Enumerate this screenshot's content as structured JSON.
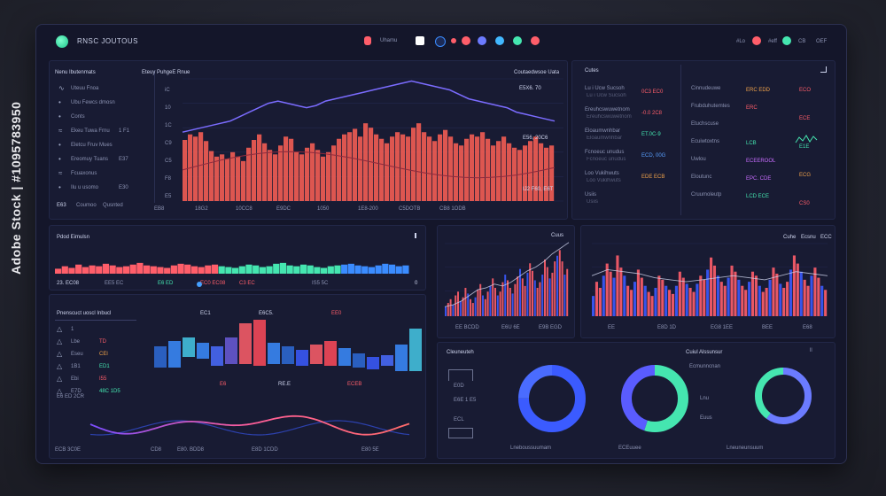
{
  "header": {
    "title": "RNSC JOUTOUS",
    "tab_label": "Uhamu",
    "pills": [
      {
        "color": "#ff5e6a"
      },
      {
        "color": "#ffffff"
      },
      {
        "color": "#3b8cff"
      },
      {
        "color": "#ff5e6a"
      },
      {
        "color": "#6c7bff"
      },
      {
        "color": "#42b8ff"
      },
      {
        "color": "#45e6b0"
      },
      {
        "color": "#ff5e6a"
      }
    ],
    "right_items": [
      "#Lo",
      "#eff",
      "CB",
      "OEF"
    ]
  },
  "left_list": {
    "title": "Nenu Ibutenmats",
    "rows": [
      {
        "label": "Uteuu Fnoa",
        "value": "",
        "icon": "pulse-icon"
      },
      {
        "label": "Ubu Fewcs dmosn",
        "value": "",
        "icon": "dot-icon"
      },
      {
        "label": "Conts",
        "value": "",
        "icon": "dot-icon"
      },
      {
        "label": "Ekeu Tuwa Frnu",
        "value": "1 F1",
        "icon": "wave-icon"
      },
      {
        "label": "Eletcu Fruv Mues",
        "value": "",
        "icon": "dot-icon"
      },
      {
        "label": "Ereomuy Tuans",
        "value": "E37",
        "icon": "dot-icon"
      },
      {
        "label": "Fcuaxonus",
        "value": "",
        "icon": "wave-icon"
      },
      {
        "label": "Ilu u usomo",
        "value": "E30",
        "icon": "dot-icon"
      }
    ],
    "footer": [
      "E63",
      "Coumoo",
      "Qusnted"
    ]
  },
  "main_chart": {
    "title": "Eteuy PuhgeE Rnue",
    "right_title": "Coutaedwsoe Uata",
    "annotations": [
      "E5X6. 70",
      "E56, 20C6",
      "IJ2 F60, E6T"
    ],
    "x_labels": [
      "EB8",
      "18G2",
      "10CC8",
      "E9DC",
      "1050",
      "1E8-200",
      "C5DOTB",
      "CB8 1ODB"
    ],
    "y_labels": [
      "iC",
      "10",
      "1C",
      "C9",
      "C5",
      "F8",
      "E5"
    ]
  },
  "chart_data": [
    {
      "type": "bar",
      "title": "Eteuy PuhgeE Rnue",
      "values": [
        55,
        60,
        58,
        62,
        54,
        45,
        40,
        42,
        38,
        44,
        40,
        36,
        48,
        55,
        60,
        52,
        46,
        42,
        50,
        58,
        56,
        44,
        42,
        48,
        52,
        46,
        40,
        44,
        50,
        56,
        60,
        62,
        65,
        58,
        70,
        66,
        60,
        56,
        52,
        58,
        62,
        60,
        58,
        66,
        70,
        62,
        58,
        54,
        60,
        64,
        58,
        52,
        50,
        56,
        60,
        58,
        62,
        56,
        50,
        54,
        58,
        52,
        48,
        46,
        50,
        54,
        58,
        52,
        48,
        50
      ],
      "line": [
        62,
        64,
        66,
        68,
        70,
        72,
        76,
        80,
        84,
        88,
        90,
        88,
        86,
        84,
        86,
        90,
        92,
        94,
        96,
        98,
        100,
        102,
        104,
        106,
        108,
        106,
        104,
        102,
        100,
        96,
        92,
        90,
        88,
        86,
        84,
        80,
        78,
        76,
        74,
        72
      ],
      "ylim": [
        0,
        110
      ]
    },
    {
      "type": "bar",
      "values": [
        12,
        18,
        14,
        22,
        16,
        20,
        18,
        24,
        20,
        16,
        18,
        22,
        26,
        20,
        18,
        16,
        14,
        20,
        24,
        22,
        18,
        16,
        20,
        22,
        18,
        16,
        14,
        18,
        22,
        20,
        16,
        18,
        24,
        26,
        20,
        18,
        22,
        20,
        16,
        14,
        18,
        20,
        22,
        24,
        20,
        18,
        16,
        20,
        24,
        22,
        18,
        20
      ],
      "ylim": [
        0,
        30
      ]
    },
    {
      "type": "bar",
      "values": [
        10,
        14,
        18,
        12,
        22,
        26,
        16,
        20,
        30,
        24,
        18,
        14,
        20,
        28,
        34,
        22,
        18,
        26,
        32,
        40,
        30,
        22,
        26,
        36,
        44,
        38,
        30,
        24,
        34,
        42,
        50,
        40,
        32,
        46,
        56,
        48,
        38,
        30,
        36,
        44,
        60,
        52,
        40,
        46,
        58,
        64,
        70,
        58,
        44,
        50
      ],
      "line": [
        10,
        12,
        16,
        22,
        28,
        30,
        34,
        32,
        36,
        42,
        48,
        52,
        58,
        66,
        72,
        78
      ],
      "ylim": [
        0,
        75
      ]
    },
    {
      "type": "bar",
      "values": [
        20,
        34,
        28,
        40,
        52,
        44,
        38,
        60,
        48,
        40,
        30,
        26,
        34,
        46,
        38,
        30,
        24,
        20,
        28,
        40,
        36,
        30,
        26,
        22,
        30,
        44,
        38,
        32,
        28,
        24,
        32,
        40,
        36,
        46,
        58,
        50,
        40,
        34,
        30,
        38,
        50,
        44,
        36,
        30,
        26,
        34,
        44,
        40,
        30,
        24,
        28,
        36,
        48,
        42,
        32,
        28,
        34,
        46,
        60,
        52,
        44,
        36,
        30,
        40,
        48,
        38,
        30,
        26
      ],
      "line": [
        40,
        46,
        44,
        42,
        38,
        36,
        34,
        36,
        38,
        40,
        38,
        36,
        40,
        44,
        42,
        40
      ],
      "ylim": [
        0,
        70
      ]
    },
    {
      "type": "bar",
      "values": [
        14,
        22,
        30,
        26,
        18,
        34,
        40,
        36,
        28,
        22,
        30,
        38,
        44,
        40,
        34,
        26,
        20,
        28,
        36,
        42,
        46,
        38,
        30,
        24,
        30,
        40,
        48,
        56,
        52,
        44,
        36,
        30,
        26,
        34,
        42,
        50,
        46,
        38,
        30,
        24,
        20,
        28,
        36,
        44,
        40,
        34,
        28,
        22
      ],
      "ylim": [
        0,
        60
      ]
    },
    {
      "type": "pie",
      "title": "Eelcl Artsbeaaur",
      "slices": [
        {
          "label": "A",
          "value": 0.75,
          "color": "#3b5bff"
        },
        {
          "label": "B",
          "value": 0.25,
          "color": "#4a6cff"
        }
      ]
    },
    {
      "type": "pie",
      "slices": [
        {
          "label": "A",
          "value": 0.55,
          "color": "#45e6b0"
        },
        {
          "label": "B",
          "value": 0.45,
          "color": "#5a5cff"
        }
      ]
    },
    {
      "type": "pie",
      "slices": [
        {
          "label": "A",
          "value": 0.6,
          "color": "#6b7bff"
        },
        {
          "label": "B",
          "value": 0.4,
          "color": "#45e6b0"
        }
      ]
    }
  ],
  "right_table": {
    "title": "Cutes",
    "col1": [
      {
        "label": "Lu i Ucw Sucsoh",
        "value": "0C3 EC0",
        "color": "#ff5e6a"
      },
      {
        "label": "Ereuhcswuwetnom",
        "value": "-0.0 2C8",
        "color": "#ff5e6a"
      },
      {
        "label": "Eloaumwnhbar",
        "value": "ET.0C-9",
        "color": "#45e6b0"
      },
      {
        "label": "Fcnoeuc unudus",
        "value": "ECD, 00G",
        "color": "#58a0ff"
      },
      {
        "label": "Loo Vukihwuts",
        "value": "EDE ECB",
        "color": "#f0a24a"
      },
      {
        "label": "Usiis",
        "value": "",
        "color": "#8c93b3"
      }
    ],
    "col2": [
      {
        "label": "Cinnudeuwe",
        "value": "ERC EDD",
        "color": "#f0a24a"
      },
      {
        "label": "Frubduhutemtes",
        "value": "ERC",
        "color": "#ff5e6a"
      },
      {
        "label": "Etuchscuse",
        "value": "",
        "color": "#8c93b3"
      },
      {
        "label": "Ecuiwtoxtns",
        "value": "LCB",
        "color": "#45e6b0"
      },
      {
        "label": "Uwlou",
        "value": "ECEEROOL",
        "color": "#c86dff"
      },
      {
        "label": "Eloutunc",
        "value": "EPC. CDE",
        "color": "#c86dff"
      },
      {
        "label": "Cruumoleutp",
        "value": "LCD ECE",
        "color": "#45e6b0"
      }
    ],
    "col3": [
      "ECO",
      "ECE",
      "E1E",
      "ECG",
      "CS0"
    ]
  },
  "mid_left": {
    "title": "Pdod Eimulsn",
    "stats": [
      {
        "label": "23. EC08",
        "color": "#cfd5ee"
      },
      {
        "label": "EE5 EC",
        "color": "#8c93b3"
      },
      {
        "label": "E6 ED",
        "color": "#45e6b0"
      },
      {
        "label": "EC0 EC08",
        "color": "#ff5e6a"
      },
      {
        "label": "C3 EC",
        "color": "#ff5e6a"
      },
      {
        "label": "IS5 5C",
        "color": "#8c93b3"
      },
      {
        "label": "0",
        "color": "#cfd5ee"
      }
    ]
  },
  "lower_left": {
    "title": "Pnenscuct uoscl Inbucl",
    "rows": [
      {
        "label": "1",
        "value": "",
        "color": "#8c93b3"
      },
      {
        "label": "Lbe",
        "value": "TD",
        "color": "#ff5e6a"
      },
      {
        "label": "Eseu",
        "value": "CEl",
        "color": "#f0a24a"
      },
      {
        "label": "1B1",
        "value": "ED1",
        "color": "#45e6b0"
      },
      {
        "label": "Ebi",
        "value": "I55",
        "color": "#ff5e6a"
      },
      {
        "label": "E7D",
        "value": "48C 1D5",
        "color": "#45e6b0"
      }
    ],
    "heat_labels": [
      "EC1",
      "E6C5.",
      "EE0",
      "E6",
      "RE.E",
      "ECEB"
    ],
    "footer": [
      "ECB 3C0E",
      "CD8",
      "E80. BDD8",
      "E8D 1CDD",
      "E80 5E"
    ],
    "wave_label": "E6 ED 2CR"
  },
  "mid_charts": {
    "titles": [
      "Cuus",
      "Cuhe",
      "Ecsnu",
      "ECC"
    ],
    "x_labels_1": [
      "EE BCDD",
      "E6U 6E",
      "E9B EGD"
    ],
    "x_labels_2": [
      "EE",
      "E8D 1D",
      "EG8 1EE",
      "BEE",
      "E68"
    ]
  },
  "bottom_right": {
    "title": "Cleuneuteh",
    "left_stats": [
      "E0D",
      "E6E 1 E5",
      "ECL"
    ],
    "side_title": "Cuiul Alssunsur",
    "side_items": [
      "Ecmunncnan",
      "Lnu",
      "Euus"
    ],
    "footer_labels": [
      "Lneboussuumam",
      "ECEuuee",
      "Lneuneunsuum"
    ],
    "marker": "ll"
  },
  "watermark": {
    "side_text": "Adobe Stock | #1095783950"
  }
}
